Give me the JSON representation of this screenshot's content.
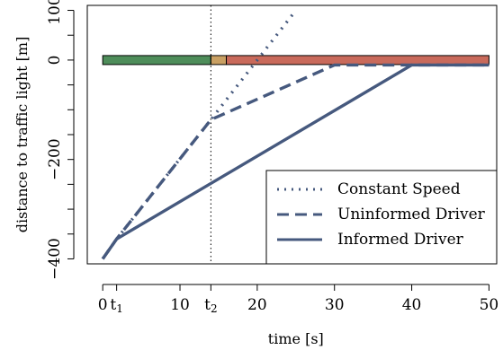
{
  "chart_data": {
    "type": "line",
    "xlabel": "time [s]",
    "ylabel": "distance to traffic light [m]",
    "xlim": [
      -2,
      51
    ],
    "ylim": [
      -410,
      110
    ],
    "x_ticks": [
      {
        "value": 0,
        "label": "0"
      },
      {
        "value": 1.8,
        "label": "t",
        "sub": "1"
      },
      {
        "value": 10,
        "label": "10"
      },
      {
        "value": 14,
        "label": "t",
        "sub": "2"
      },
      {
        "value": 20,
        "label": "20"
      },
      {
        "value": 30,
        "label": "30"
      },
      {
        "value": 40,
        "label": "40"
      },
      {
        "value": 50,
        "label": "50"
      }
    ],
    "y_ticks": [
      {
        "value": -400,
        "label": "−400"
      },
      {
        "value": -200,
        "label": "−200"
      },
      {
        "value": 0,
        "label": "0"
      },
      {
        "value": 100,
        "label": "100"
      }
    ],
    "vline_x": 14,
    "light_bar": {
      "y": 0,
      "segments": [
        {
          "x0": 0,
          "x1": 14,
          "color": "#4e8d5a"
        },
        {
          "x0": 14,
          "x1": 16,
          "color": "#c9a063"
        },
        {
          "x0": 16,
          "x1": 50,
          "color": "#c96a5b"
        }
      ]
    },
    "line_color": "#46597e",
    "legend_position": "bottom-right",
    "series": [
      {
        "name": "Constant Speed",
        "dash": "dotted",
        "x": [
          0,
          1.8,
          14,
          25
        ],
        "y": [
          -400,
          -360,
          -120,
          100
        ]
      },
      {
        "name": "Uninformed Driver",
        "dash": "dashed",
        "x": [
          0,
          1.8,
          14,
          30,
          50
        ],
        "y": [
          -400,
          -360,
          -120,
          -10,
          -10
        ]
      },
      {
        "name": "Informed Driver",
        "dash": "solid",
        "x": [
          0,
          1.8,
          40,
          50
        ],
        "y": [
          -400,
          -360,
          -10,
          -10
        ]
      }
    ]
  }
}
